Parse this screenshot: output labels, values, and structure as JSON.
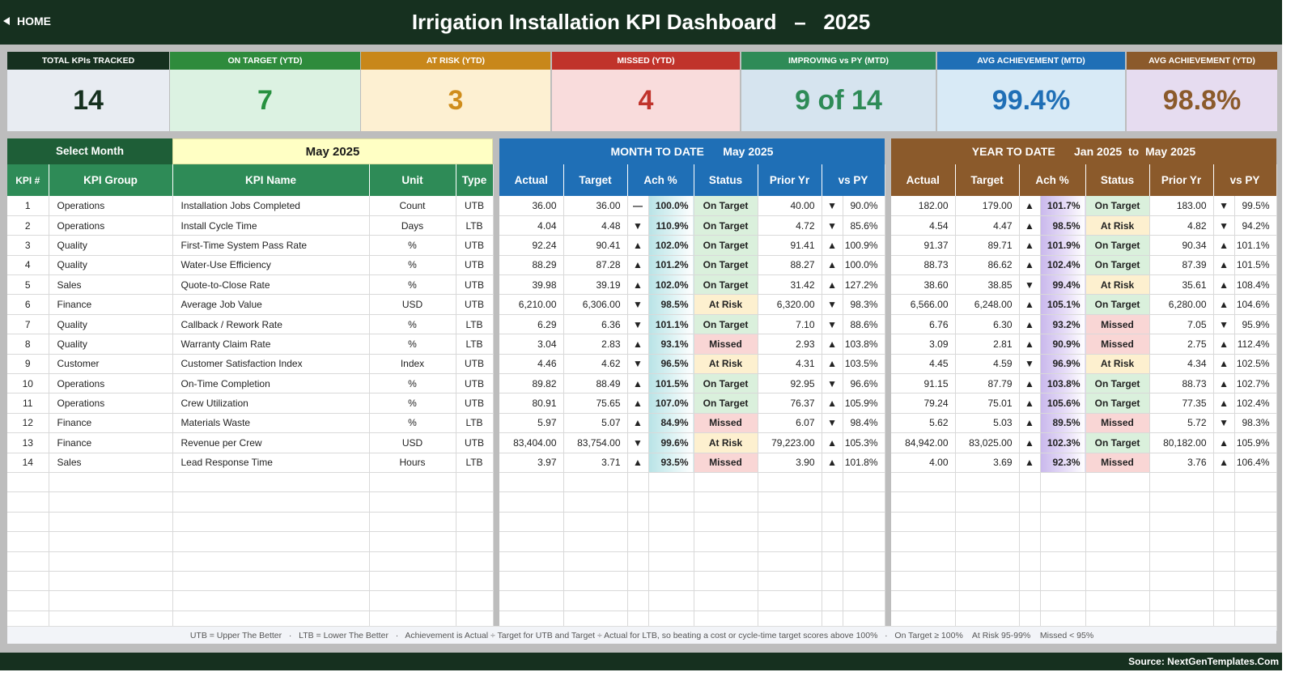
{
  "header": {
    "home_label": "HOME",
    "title": "Irrigation Installation KPI Dashboard   –   2025"
  },
  "cards": [
    {
      "label": "TOTAL KPIs TRACKED",
      "value": "14",
      "header_color": "#16301f",
      "body_color": "#e8ecf2",
      "value_color": "#16301f"
    },
    {
      "label": "ON TARGET (YTD)",
      "value": "7",
      "header_color": "#2e8b3c",
      "body_color": "#dcf2e2",
      "value_color": "#27913f"
    },
    {
      "label": "AT RISK (YTD)",
      "value": "3",
      "header_color": "#c8871a",
      "body_color": "#fdf0d2",
      "value_color": "#cf8d1c"
    },
    {
      "label": "MISSED (YTD)",
      "value": "4",
      "header_color": "#c0332b",
      "body_color": "#f9dcdc",
      "value_color": "#c0332b"
    },
    {
      "label": "IMPROVING vs PY (MTD)",
      "value": "9 of 14",
      "header_color": "#2e8b57",
      "body_color": "#d6e4ef",
      "value_color": "#2e8b57"
    },
    {
      "label": "AVG ACHIEVEMENT (MTD)",
      "value": "99.4%",
      "header_color": "#1f6fb6",
      "body_color": "#d8eaf6",
      "value_color": "#1f6fb6"
    },
    {
      "label": "AVG ACHIEVEMENT (YTD)",
      "value": "98.8%",
      "header_color": "#8b5a2b",
      "body_color": "#e6dcf0",
      "value_color": "#8b5a2b"
    }
  ],
  "selector": {
    "label": "Select Month",
    "value": "May 2025"
  },
  "left_headers": [
    "KPI #",
    "KPI Group",
    "KPI Name",
    "Unit",
    "Type"
  ],
  "mtd_title": "MONTH TO DATE      May 2025",
  "ytd_title": "YEAR TO DATE      Jan 2025  to  May 2025",
  "metric_headers": [
    "Actual",
    "Target",
    "Ach %",
    "Status",
    "Prior Yr",
    "vs PY"
  ],
  "kpis": [
    {
      "num": "1",
      "group": "Operations",
      "name": "Installation Jobs Completed",
      "unit": "Count",
      "type": "UTB",
      "mtd": {
        "actual": "36.00",
        "target": "36.00",
        "ach_arrow": "dash",
        "ach": "100.0%",
        "status": "On Target",
        "prior": "40.00",
        "py_arrow": "down",
        "vs_py": "90.0%"
      },
      "ytd": {
        "actual": "182.00",
        "target": "179.00",
        "ach_arrow": "up",
        "ach": "101.7%",
        "status": "On Target",
        "prior": "183.00",
        "py_arrow": "down",
        "vs_py": "99.5%"
      }
    },
    {
      "num": "2",
      "group": "Operations",
      "name": "Install Cycle Time",
      "unit": "Days",
      "type": "LTB",
      "mtd": {
        "actual": "4.04",
        "target": "4.48",
        "ach_arrow": "down",
        "ach": "110.9%",
        "status": "On Target",
        "prior": "4.72",
        "py_arrow": "down",
        "vs_py": "85.6%"
      },
      "ytd": {
        "actual": "4.54",
        "target": "4.47",
        "ach_arrow": "up",
        "ach": "98.5%",
        "status": "At Risk",
        "prior": "4.82",
        "py_arrow": "down",
        "vs_py": "94.2%"
      }
    },
    {
      "num": "3",
      "group": "Quality",
      "name": "First-Time System Pass Rate",
      "unit": "%",
      "type": "UTB",
      "mtd": {
        "actual": "92.24",
        "target": "90.41",
        "ach_arrow": "up",
        "ach": "102.0%",
        "status": "On Target",
        "prior": "91.41",
        "py_arrow": "up",
        "vs_py": "100.9%"
      },
      "ytd": {
        "actual": "91.37",
        "target": "89.71",
        "ach_arrow": "up",
        "ach": "101.9%",
        "status": "On Target",
        "prior": "90.34",
        "py_arrow": "up",
        "vs_py": "101.1%"
      }
    },
    {
      "num": "4",
      "group": "Quality",
      "name": "Water-Use Efficiency",
      "unit": "%",
      "type": "UTB",
      "mtd": {
        "actual": "88.29",
        "target": "87.28",
        "ach_arrow": "up",
        "ach": "101.2%",
        "status": "On Target",
        "prior": "88.27",
        "py_arrow": "up",
        "vs_py": "100.0%"
      },
      "ytd": {
        "actual": "88.73",
        "target": "86.62",
        "ach_arrow": "up",
        "ach": "102.4%",
        "status": "On Target",
        "prior": "87.39",
        "py_arrow": "up",
        "vs_py": "101.5%"
      }
    },
    {
      "num": "5",
      "group": "Sales",
      "name": "Quote-to-Close Rate",
      "unit": "%",
      "type": "UTB",
      "mtd": {
        "actual": "39.98",
        "target": "39.19",
        "ach_arrow": "up",
        "ach": "102.0%",
        "status": "On Target",
        "prior": "31.42",
        "py_arrow": "up",
        "vs_py": "127.2%"
      },
      "ytd": {
        "actual": "38.60",
        "target": "38.85",
        "ach_arrow": "down",
        "ach": "99.4%",
        "status": "At Risk",
        "prior": "35.61",
        "py_arrow": "up",
        "vs_py": "108.4%"
      }
    },
    {
      "num": "6",
      "group": "Finance",
      "name": "Average Job Value",
      "unit": "USD",
      "type": "UTB",
      "mtd": {
        "actual": "6,210.00",
        "target": "6,306.00",
        "ach_arrow": "down",
        "ach": "98.5%",
        "status": "At Risk",
        "prior": "6,320.00",
        "py_arrow": "down",
        "vs_py": "98.3%"
      },
      "ytd": {
        "actual": "6,566.00",
        "target": "6,248.00",
        "ach_arrow": "up",
        "ach": "105.1%",
        "status": "On Target",
        "prior": "6,280.00",
        "py_arrow": "up",
        "vs_py": "104.6%"
      }
    },
    {
      "num": "7",
      "group": "Quality",
      "name": "Callback / Rework Rate",
      "unit": "%",
      "type": "LTB",
      "mtd": {
        "actual": "6.29",
        "target": "6.36",
        "ach_arrow": "down",
        "ach": "101.1%",
        "status": "On Target",
        "prior": "7.10",
        "py_arrow": "down",
        "vs_py": "88.6%"
      },
      "ytd": {
        "actual": "6.76",
        "target": "6.30",
        "ach_arrow": "up",
        "ach": "93.2%",
        "status": "Missed",
        "prior": "7.05",
        "py_arrow": "down",
        "vs_py": "95.9%"
      }
    },
    {
      "num": "8",
      "group": "Quality",
      "name": "Warranty Claim Rate",
      "unit": "%",
      "type": "LTB",
      "mtd": {
        "actual": "3.04",
        "target": "2.83",
        "ach_arrow": "up",
        "ach": "93.1%",
        "status": "Missed",
        "prior": "2.93",
        "py_arrow": "up",
        "vs_py": "103.8%"
      },
      "ytd": {
        "actual": "3.09",
        "target": "2.81",
        "ach_arrow": "up",
        "ach": "90.9%",
        "status": "Missed",
        "prior": "2.75",
        "py_arrow": "up",
        "vs_py": "112.4%"
      }
    },
    {
      "num": "9",
      "group": "Customer",
      "name": "Customer Satisfaction Index",
      "unit": "Index",
      "type": "UTB",
      "mtd": {
        "actual": "4.46",
        "target": "4.62",
        "ach_arrow": "down",
        "ach": "96.5%",
        "status": "At Risk",
        "prior": "4.31",
        "py_arrow": "up",
        "vs_py": "103.5%"
      },
      "ytd": {
        "actual": "4.45",
        "target": "4.59",
        "ach_arrow": "down",
        "ach": "96.9%",
        "status": "At Risk",
        "prior": "4.34",
        "py_arrow": "up",
        "vs_py": "102.5%"
      }
    },
    {
      "num": "10",
      "group": "Operations",
      "name": "On-Time Completion",
      "unit": "%",
      "type": "UTB",
      "mtd": {
        "actual": "89.82",
        "target": "88.49",
        "ach_arrow": "up",
        "ach": "101.5%",
        "status": "On Target",
        "prior": "92.95",
        "py_arrow": "down",
        "vs_py": "96.6%"
      },
      "ytd": {
        "actual": "91.15",
        "target": "87.79",
        "ach_arrow": "up",
        "ach": "103.8%",
        "status": "On Target",
        "prior": "88.73",
        "py_arrow": "up",
        "vs_py": "102.7%"
      }
    },
    {
      "num": "11",
      "group": "Operations",
      "name": "Crew Utilization",
      "unit": "%",
      "type": "UTB",
      "mtd": {
        "actual": "80.91",
        "target": "75.65",
        "ach_arrow": "up",
        "ach": "107.0%",
        "status": "On Target",
        "prior": "76.37",
        "py_arrow": "up",
        "vs_py": "105.9%"
      },
      "ytd": {
        "actual": "79.24",
        "target": "75.01",
        "ach_arrow": "up",
        "ach": "105.6%",
        "status": "On Target",
        "prior": "77.35",
        "py_arrow": "up",
        "vs_py": "102.4%"
      }
    },
    {
      "num": "12",
      "group": "Finance",
      "name": "Materials Waste",
      "unit": "%",
      "type": "LTB",
      "mtd": {
        "actual": "5.97",
        "target": "5.07",
        "ach_arrow": "up",
        "ach": "84.9%",
        "status": "Missed",
        "prior": "6.07",
        "py_arrow": "down",
        "vs_py": "98.4%"
      },
      "ytd": {
        "actual": "5.62",
        "target": "5.03",
        "ach_arrow": "up",
        "ach": "89.5%",
        "status": "Missed",
        "prior": "5.72",
        "py_arrow": "down",
        "vs_py": "98.3%"
      }
    },
    {
      "num": "13",
      "group": "Finance",
      "name": "Revenue per Crew",
      "unit": "USD",
      "type": "UTB",
      "mtd": {
        "actual": "83,404.00",
        "target": "83,754.00",
        "ach_arrow": "down",
        "ach": "99.6%",
        "status": "At Risk",
        "prior": "79,223.00",
        "py_arrow": "up",
        "vs_py": "105.3%"
      },
      "ytd": {
        "actual": "84,942.00",
        "target": "83,025.00",
        "ach_arrow": "up",
        "ach": "102.3%",
        "status": "On Target",
        "prior": "80,182.00",
        "py_arrow": "up",
        "vs_py": "105.9%"
      }
    },
    {
      "num": "14",
      "group": "Sales",
      "name": "Lead Response Time",
      "unit": "Hours",
      "type": "LTB",
      "mtd": {
        "actual": "3.97",
        "target": "3.71",
        "ach_arrow": "up",
        "ach": "93.5%",
        "status": "Missed",
        "prior": "3.90",
        "py_arrow": "up",
        "vs_py": "101.8%"
      },
      "ytd": {
        "actual": "4.00",
        "target": "3.69",
        "ach_arrow": "up",
        "ach": "92.3%",
        "status": "Missed",
        "prior": "3.76",
        "py_arrow": "up",
        "vs_py": "106.4%"
      }
    }
  ],
  "legend": "UTB = Upper The Better   ·   LTB = Lower The Better   ·   Achievement is Actual ÷ Target for UTB and Target ÷ Actual for LTB, so beating a cost or cycle-time target scores above 100%   ·   On Target ≥ 100%    At Risk 95-99%    Missed < 95%",
  "source": "Source: NextGenTemplates.Com",
  "colors": {
    "dark_green": "#16301f",
    "mtd_blue": "#1f6fb6",
    "ytd_brown": "#8b5a2b",
    "left_green": "#2e8b57",
    "month_yellow": "#ffffc4"
  }
}
